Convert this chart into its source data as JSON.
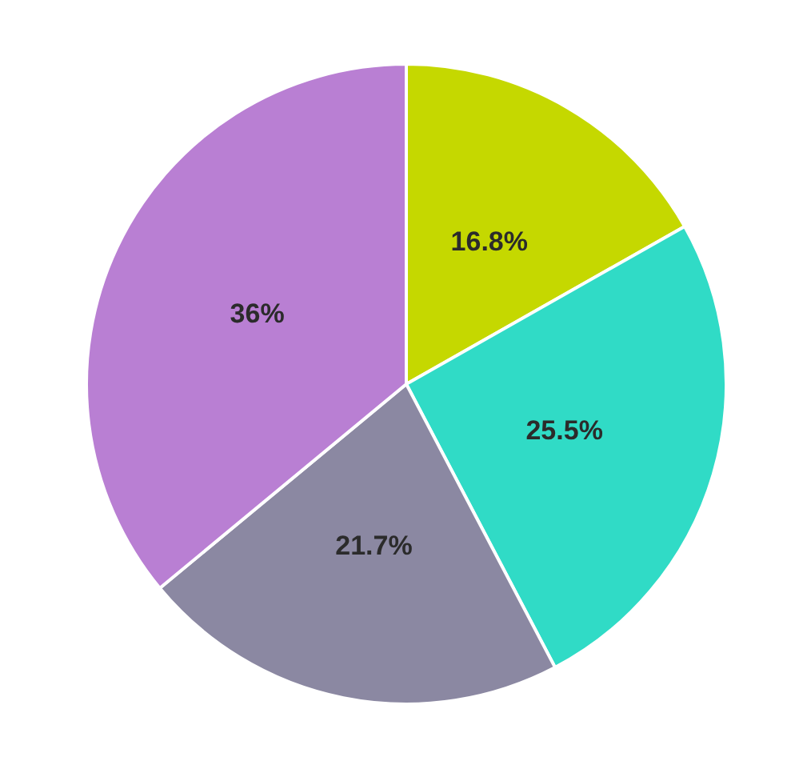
{
  "chart_data": {
    "type": "pie",
    "categories": [
      null,
      null,
      null,
      null
    ],
    "values": [
      16.8,
      25.5,
      21.7,
      36
    ],
    "colors": [
      "#c5d800",
      "#30dbc6",
      "#8b88a2",
      "#b97fd3"
    ],
    "value_labels": [
      "16.8%",
      "25.5%",
      "21.7%",
      "36%"
    ]
  }
}
